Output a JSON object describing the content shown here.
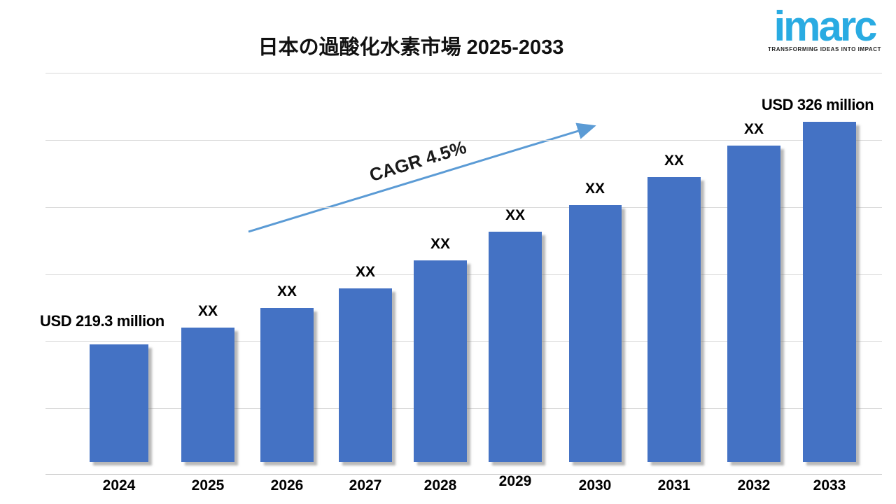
{
  "title": "日本の過酸化水素市場 2025-2033",
  "logo": {
    "text": "imarc",
    "tagline": "TRANSFORMING IDEAS INTO IMPACT",
    "brand_color": "#29ABE2"
  },
  "annotation": {
    "cagr_label": "CAGR 4.5%"
  },
  "chart_data": {
    "type": "bar",
    "title": "日本の過酸化水素市場 2025-2033",
    "categories": [
      "2024",
      "2025",
      "2026",
      "2027",
      "2028",
      "2029",
      "2030",
      "2031",
      "2032",
      "2033"
    ],
    "bar_labels": [
      "USD 219.3 million",
      "XX",
      "XX",
      "XX",
      "XX",
      "XX",
      "XX",
      "XX",
      "XX",
      "USD 326 million"
    ],
    "values_estimated_usd_million": [
      219.3,
      227.4,
      236.8,
      246.1,
      259.5,
      273.3,
      286.0,
      299.4,
      314.5,
      326
    ],
    "first_bar_label": "USD 219.3 million",
    "last_bar_label": "USD 326 million",
    "cagr_text": "CAGR 4.5%",
    "xlabel": "",
    "ylabel": "",
    "y_axis_labels_visible": false,
    "grid": true,
    "legend": false,
    "bar_color": "#4472C4",
    "arrow_color": "#5B9BD5",
    "gridline_color": "#D9D9D9",
    "axisline_color": "#BFBFBF"
  }
}
